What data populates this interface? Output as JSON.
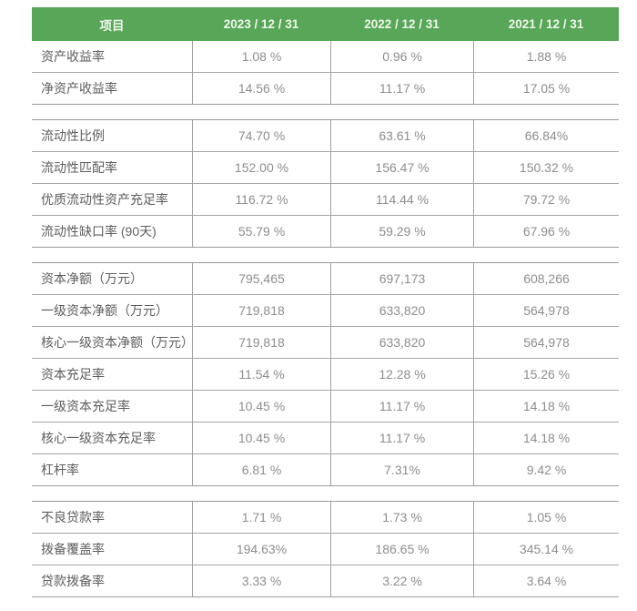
{
  "table": {
    "header": {
      "item_label": "项目",
      "columns": [
        "2023 / 12 / 31",
        "2022 / 12 / 31",
        "2021 / 12 / 31"
      ]
    },
    "sections": [
      {
        "rows": [
          {
            "label": "资产收益率",
            "values": [
              "1.08 %",
              "0.96 %",
              "1.88 %"
            ]
          },
          {
            "label": "净资产收益率",
            "values": [
              "14.56 %",
              "11.17 %",
              "17.05 %"
            ]
          }
        ]
      },
      {
        "rows": [
          {
            "label": "流动性比例",
            "values": [
              "74.70 %",
              "63.61 %",
              "66.84%"
            ]
          },
          {
            "label": "流动性匹配率",
            "values": [
              "152.00 %",
              "156.47 %",
              "150.32 %"
            ]
          },
          {
            "label": "优质流动性资产充足率",
            "values": [
              "116.72 %",
              "114.44 %",
              "79.72 %"
            ]
          },
          {
            "label": "流动性缺口率 (90天)",
            "values": [
              "55.79 %",
              "59.29 %",
              "67.96 %"
            ]
          }
        ]
      },
      {
        "rows": [
          {
            "label": "资本净额（万元）",
            "values": [
              "795,465",
              "697,173",
              "608,266"
            ]
          },
          {
            "label": "一级资本净额（万元）",
            "values": [
              "719,818",
              "633,820",
              "564,978"
            ]
          },
          {
            "label": "核心一级资本净额（万元）",
            "values": [
              "719,818",
              "633,820",
              "564,978"
            ]
          },
          {
            "label": "资本充足率",
            "values": [
              "11.54 %",
              "12.28 %",
              "15.26 %"
            ]
          },
          {
            "label": "一级资本充足率",
            "values": [
              "10.45 %",
              "11.17 %",
              "14.18 %"
            ]
          },
          {
            "label": "核心一级资本充足率",
            "values": [
              "10.45 %",
              "11.17 %",
              "14.18 %"
            ]
          },
          {
            "label": "杠杆率",
            "values": [
              "6.81 %",
              "7.31%",
              "9.42 %"
            ]
          }
        ]
      },
      {
        "rows": [
          {
            "label": "不良贷款率",
            "values": [
              "1.71 %",
              "1.73 %",
              "1.05 %"
            ]
          },
          {
            "label": "拨备覆盖率",
            "values": [
              "194.63%",
              "186.65 %",
              "345.14 %"
            ]
          },
          {
            "label": "贷款拨备率",
            "values": [
              "3.33 %",
              "3.22 %",
              "3.64 %"
            ]
          }
        ]
      }
    ],
    "colors": {
      "header_bg": "#58a758",
      "header_text": "#f1f6ed",
      "label_text": "#5e5e5e",
      "value_text": "#8d8d8d",
      "grid_line": "#9b9b9b"
    }
  }
}
